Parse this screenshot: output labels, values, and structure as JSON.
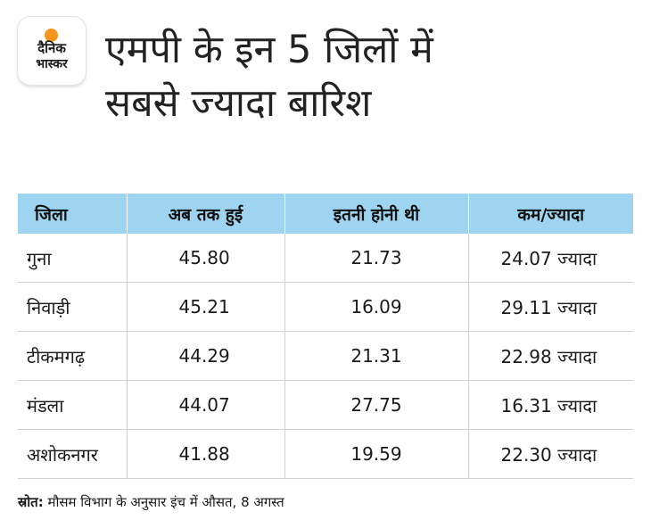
{
  "brand": {
    "line1": "दैनिक",
    "line2": "भास्कर",
    "accent_color": "#f7941d"
  },
  "headline": {
    "line1": "एमपी के इन 5 जिलों में",
    "line2": "सबसे ज्यादा बारिश"
  },
  "table": {
    "header_color": "#9fd4f0",
    "columns": [
      "जिला",
      "अब तक हुई",
      "इतनी होनी थी",
      "कम/ज्यादा"
    ],
    "rows": [
      {
        "district": "गुना",
        "received": "45.80",
        "expected": "21.73",
        "diff": "24.07 ज्यादा"
      },
      {
        "district": "निवाड़ी",
        "received": "45.21",
        "expected": "16.09",
        "diff": "29.11 ज्यादा"
      },
      {
        "district": "टीकमगढ़",
        "received": "44.29",
        "expected": "21.31",
        "diff": "22.98 ज्यादा"
      },
      {
        "district": "मंडला",
        "received": "44.07",
        "expected": "27.75",
        "diff": "16.31 ज्यादा"
      },
      {
        "district": "अशोकनगर",
        "received": "41.88",
        "expected": "19.59",
        "diff": "22.30 ज्यादा"
      }
    ]
  },
  "source": {
    "label": "स्रोत:",
    "text": " मौसम विभाग के अनुसार इंच में औसत, 8 अगस्त"
  }
}
